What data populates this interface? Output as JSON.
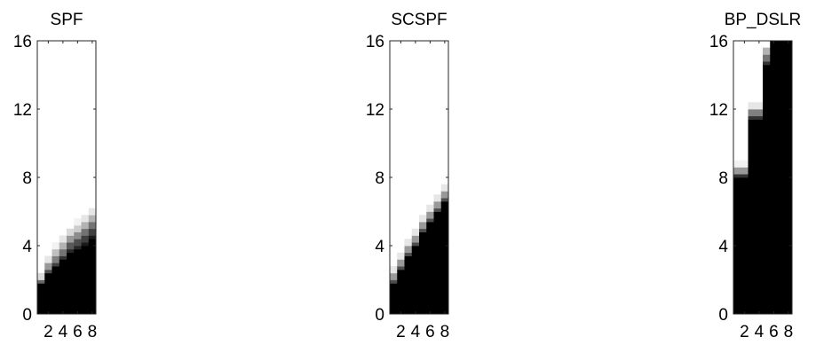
{
  "chart_data": [
    {
      "type": "heatmap",
      "title": "SPF",
      "xlabel": "",
      "ylabel": "",
      "xlim": [
        0.5,
        8.5
      ],
      "ylim": [
        0,
        16
      ],
      "x_ticks": [
        "2",
        "4",
        "6",
        "8"
      ],
      "y_ticks": [
        "0",
        "4",
        "8",
        "12",
        "16"
      ],
      "colormap": "gray",
      "cells_resolution": [
        0.5,
        8
      ],
      "column_boundaries": [
        {
          "x": 1,
          "black_up_to": 1.8,
          "gray_ramp": [
            {
              "y": 2.0,
              "level": 0.4
            },
            {
              "y": 2.4,
              "level": 0.85
            }
          ]
        },
        {
          "x": 2,
          "black_up_to": 2.4,
          "gray_ramp": [
            {
              "y": 2.6,
              "level": 0.3
            },
            {
              "y": 3.0,
              "level": 0.6
            },
            {
              "y": 3.4,
              "level": 0.9
            }
          ]
        },
        {
          "x": 3,
          "black_up_to": 2.8,
          "gray_ramp": [
            {
              "y": 3.0,
              "level": 0.25
            },
            {
              "y": 3.4,
              "level": 0.5
            },
            {
              "y": 3.8,
              "level": 0.75
            },
            {
              "y": 4.2,
              "level": 0.95
            }
          ]
        },
        {
          "x": 4,
          "black_up_to": 3.2,
          "gray_ramp": [
            {
              "y": 3.4,
              "level": 0.2
            },
            {
              "y": 3.8,
              "level": 0.45
            },
            {
              "y": 4.2,
              "level": 0.7
            },
            {
              "y": 4.6,
              "level": 0.9
            }
          ]
        },
        {
          "x": 5,
          "black_up_to": 3.6,
          "gray_ramp": [
            {
              "y": 3.8,
              "level": 0.15
            },
            {
              "y": 4.2,
              "level": 0.35
            },
            {
              "y": 4.6,
              "level": 0.6
            },
            {
              "y": 5.0,
              "level": 0.85
            }
          ]
        },
        {
          "x": 6,
          "black_up_to": 3.8,
          "gray_ramp": [
            {
              "y": 4.0,
              "level": 0.15
            },
            {
              "y": 4.4,
              "level": 0.3
            },
            {
              "y": 4.8,
              "level": 0.55
            },
            {
              "y": 5.2,
              "level": 0.8
            },
            {
              "y": 5.6,
              "level": 0.95
            }
          ]
        },
        {
          "x": 7,
          "black_up_to": 4.0,
          "gray_ramp": [
            {
              "y": 4.2,
              "level": 0.1
            },
            {
              "y": 4.6,
              "level": 0.25
            },
            {
              "y": 5.0,
              "level": 0.45
            },
            {
              "y": 5.4,
              "level": 0.7
            },
            {
              "y": 5.8,
              "level": 0.9
            }
          ]
        },
        {
          "x": 8,
          "black_up_to": 4.4,
          "gray_ramp": [
            {
              "y": 4.6,
              "level": 0.1
            },
            {
              "y": 5.0,
              "level": 0.25
            },
            {
              "y": 5.4,
              "level": 0.45
            },
            {
              "y": 5.8,
              "level": 0.7
            },
            {
              "y": 6.2,
              "level": 0.9
            }
          ]
        }
      ]
    },
    {
      "type": "heatmap",
      "title": "SCSPF",
      "xlabel": "",
      "ylabel": "",
      "xlim": [
        0.5,
        8.5
      ],
      "ylim": [
        0,
        16
      ],
      "x_ticks": [
        "2",
        "4",
        "6",
        "8"
      ],
      "y_ticks": [
        "0",
        "4",
        "8",
        "12",
        "16"
      ],
      "colormap": "gray",
      "cells_resolution": [
        0.5,
        8
      ],
      "column_boundaries": [
        {
          "x": 1,
          "black_up_to": 1.8,
          "gray_ramp": [
            {
              "y": 2.0,
              "level": 0.3
            },
            {
              "y": 2.4,
              "level": 0.6
            },
            {
              "y": 2.8,
              "level": 0.9
            }
          ]
        },
        {
          "x": 2,
          "black_up_to": 2.6,
          "gray_ramp": [
            {
              "y": 2.8,
              "level": 0.3
            },
            {
              "y": 3.2,
              "level": 0.6
            },
            {
              "y": 3.6,
              "level": 0.9
            }
          ]
        },
        {
          "x": 3,
          "black_up_to": 3.4,
          "gray_ramp": [
            {
              "y": 3.6,
              "level": 0.3
            },
            {
              "y": 4.0,
              "level": 0.6
            },
            {
              "y": 4.4,
              "level": 0.9
            }
          ]
        },
        {
          "x": 4,
          "black_up_to": 4.0,
          "gray_ramp": [
            {
              "y": 4.2,
              "level": 0.3
            },
            {
              "y": 4.6,
              "level": 0.6
            },
            {
              "y": 5.0,
              "level": 0.9
            }
          ]
        },
        {
          "x": 5,
          "black_up_to": 4.8,
          "gray_ramp": [
            {
              "y": 5.0,
              "level": 0.3
            },
            {
              "y": 5.4,
              "level": 0.6
            },
            {
              "y": 5.8,
              "level": 0.9
            }
          ]
        },
        {
          "x": 6,
          "black_up_to": 5.4,
          "gray_ramp": [
            {
              "y": 5.6,
              "level": 0.3
            },
            {
              "y": 6.0,
              "level": 0.6
            },
            {
              "y": 6.4,
              "level": 0.9
            }
          ]
        },
        {
          "x": 7,
          "black_up_to": 6.0,
          "gray_ramp": [
            {
              "y": 6.2,
              "level": 0.3
            },
            {
              "y": 6.6,
              "level": 0.6
            },
            {
              "y": 7.0,
              "level": 0.9
            }
          ]
        },
        {
          "x": 8,
          "black_up_to": 6.6,
          "gray_ramp": [
            {
              "y": 6.8,
              "level": 0.3
            },
            {
              "y": 7.2,
              "level": 0.6
            },
            {
              "y": 7.6,
              "level": 0.9
            }
          ]
        }
      ]
    },
    {
      "type": "heatmap",
      "title": "BP_DSLR",
      "xlabel": "",
      "ylabel": "",
      "xlim": [
        0.5,
        8.5
      ],
      "ylim": [
        0,
        16
      ],
      "x_ticks": [
        "2",
        "4",
        "6",
        "8"
      ],
      "y_ticks": [
        "0",
        "4",
        "8",
        "12",
        "16"
      ],
      "colormap": "gray",
      "cells_resolution": [
        0.5,
        8
      ],
      "column_boundaries": [
        {
          "x": 1,
          "black_up_to": 8.0,
          "gray_ramp": [
            {
              "y": 8.2,
              "level": 0.2
            },
            {
              "y": 8.6,
              "level": 0.6
            },
            {
              "y": 9.0,
              "level": 0.95
            }
          ]
        },
        {
          "x": 2,
          "black_up_to": 8.0,
          "gray_ramp": [
            {
              "y": 8.2,
              "level": 0.2
            },
            {
              "y": 8.6,
              "level": 0.6
            },
            {
              "y": 9.0,
              "level": 0.95
            }
          ]
        },
        {
          "x": 3,
          "black_up_to": 11.4,
          "gray_ramp": [
            {
              "y": 11.6,
              "level": 0.2
            },
            {
              "y": 12.0,
              "level": 0.5
            },
            {
              "y": 12.4,
              "level": 0.9
            }
          ]
        },
        {
          "x": 4,
          "black_up_to": 11.4,
          "gray_ramp": [
            {
              "y": 11.6,
              "level": 0.2
            },
            {
              "y": 12.0,
              "level": 0.5
            },
            {
              "y": 12.4,
              "level": 0.9
            }
          ]
        },
        {
          "x": 5,
          "black_up_to": 14.6,
          "gray_ramp": [
            {
              "y": 14.8,
              "level": 0.2
            },
            {
              "y": 15.2,
              "level": 0.45
            },
            {
              "y": 15.6,
              "level": 0.7
            }
          ]
        },
        {
          "x": 6,
          "black_up_to": 16.0,
          "gray_ramp": []
        },
        {
          "x": 7,
          "black_up_to": 16.0,
          "gray_ramp": []
        },
        {
          "x": 8,
          "black_up_to": 16.0,
          "gray_ramp": []
        }
      ]
    }
  ]
}
